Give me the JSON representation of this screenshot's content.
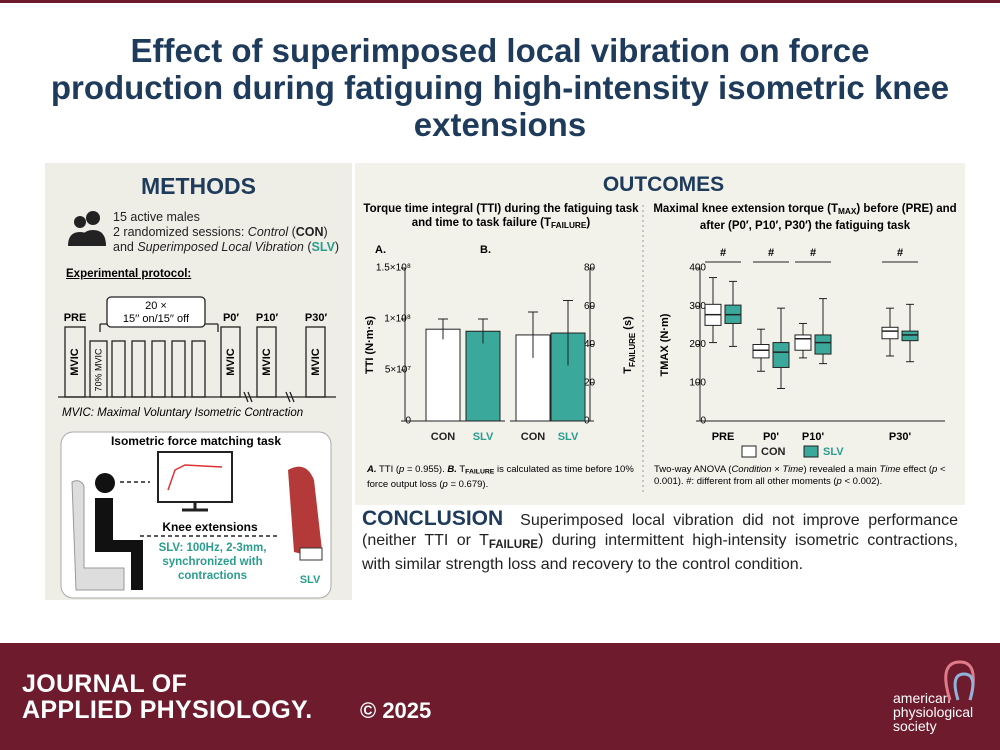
{
  "header": {
    "title": "Effect of superimposed local vibration on force production during fatiguing high-intensity isometric knee extensions"
  },
  "methods": {
    "heading": "METHODS",
    "participants": "15 active males",
    "sessions": [
      "2 randomized sessions: ",
      "Control",
      " (",
      "CON",
      ") and ",
      "Superimposed Local Vibration",
      " (",
      "SLV",
      ")"
    ],
    "protocol_label": "Experimental protocol:",
    "timepoints": [
      "PRE",
      "P0′",
      "P10′",
      "P30′"
    ],
    "repetitions": "20 ×",
    "cycle": "15′′ on/15′′ off",
    "mvic": "MVIC",
    "submax": "70% MVIC",
    "mvic_definition": "MVIC: Maximal Voluntary Isometric Contraction",
    "task_title": "Isometric force matching task",
    "task_label": "Knee extensions",
    "vibration": "SLV: 100Hz, 2-3mm, synchronized with contractions",
    "device": "SLV"
  },
  "outcomes": {
    "heading": "OUTCOMES",
    "left_title": [
      "Torque time integral (TTI) during the fatiguing task and time to task failure (T",
      "FAILURE",
      ")"
    ],
    "right_title": [
      "Maximal knee extension torque (T",
      "MAX",
      ") before (PRE) and after (P0′, P10′, P30′) the fatiguing task"
    ],
    "chart_a": {
      "type": "bar",
      "panel": "A.",
      "ylabel": [
        "TTI (N·m·s)"
      ],
      "categories": [
        "CON",
        "SLV"
      ],
      "values": [
        90000000,
        88000000
      ],
      "errors": [
        10000000,
        12000000
      ],
      "colors": [
        "#ffffff",
        "#3aa89a"
      ],
      "ylim": [
        0,
        150000000
      ],
      "yticks": [
        0,
        {
          "value": 50000000,
          "label": "5×10⁷"
        },
        {
          "value": 100000000,
          "label": "1×10⁸"
        },
        {
          "value": 150000000,
          "label": "1.5×10⁸"
        }
      ]
    },
    "chart_b": {
      "type": "bar",
      "panel": "B.",
      "ylabel": [
        "T",
        "FAILURE",
        " (s)"
      ],
      "categories": [
        "CON",
        "SLV"
      ],
      "values": [
        45,
        46
      ],
      "errors": [
        12,
        17
      ],
      "colors": [
        "#ffffff",
        "#3aa89a"
      ],
      "ylim": [
        0,
        80
      ],
      "yticks": [
        0,
        20,
        40,
        60,
        80
      ]
    },
    "chart_c": {
      "type": "box",
      "ylabel": [
        "T",
        "MAX",
        " (N·m)"
      ],
      "categories": [
        "PRE",
        "P0'",
        "P10'",
        "P30'"
      ],
      "annotations": [
        "#",
        "#",
        "#",
        "#"
      ],
      "ylim": [
        0,
        400
      ],
      "yticks": [
        0,
        100,
        200,
        300,
        400
      ],
      "series": [
        {
          "name": "CON",
          "color": "#ffffff",
          "min": [
            205,
            130,
            165,
            170
          ],
          "q1": [
            250,
            165,
            185,
            215
          ],
          "median": [
            278,
            185,
            215,
            235
          ],
          "q3": [
            305,
            200,
            225,
            245
          ],
          "max": [
            375,
            240,
            255,
            295
          ]
        },
        {
          "name": "SLV",
          "color": "#3aa89a",
          "min": [
            195,
            85,
            150,
            155
          ],
          "q1": [
            255,
            140,
            175,
            210
          ],
          "median": [
            278,
            180,
            205,
            225
          ],
          "q3": [
            303,
            205,
            225,
            235
          ],
          "max": [
            365,
            295,
            320,
            305
          ]
        }
      ]
    },
    "left_note": [
      "A.",
      " TTI (",
      "p",
      " = 0.955). ",
      "B.",
      " T",
      "FAILURE",
      " is calculated as time before 10% force output loss (",
      "p",
      " = 0.679)."
    ],
    "right_note": [
      "Two-way ANOVA (",
      "Condition",
      " × ",
      "Time",
      ") revealed a main ",
      "Time",
      " effect (",
      "p",
      " < 0.001). #: different from all other moments (",
      "p",
      " < 0.002)."
    ]
  },
  "conclusion": {
    "heading": "CONCLUSION",
    "text": [
      "Superimposed local vibration did not improve performance (neither TTI or T",
      "FAILURE",
      ") during intermittent high-intensity isometric contractions, with similar strength loss and recovery to the control condition."
    ]
  },
  "footer": {
    "journal": [
      "JOURNAL OF",
      "APPLIED PHYSIOLOGY."
    ],
    "copyright": "© 2025",
    "society": [
      "american",
      "physiological",
      "society"
    ]
  }
}
